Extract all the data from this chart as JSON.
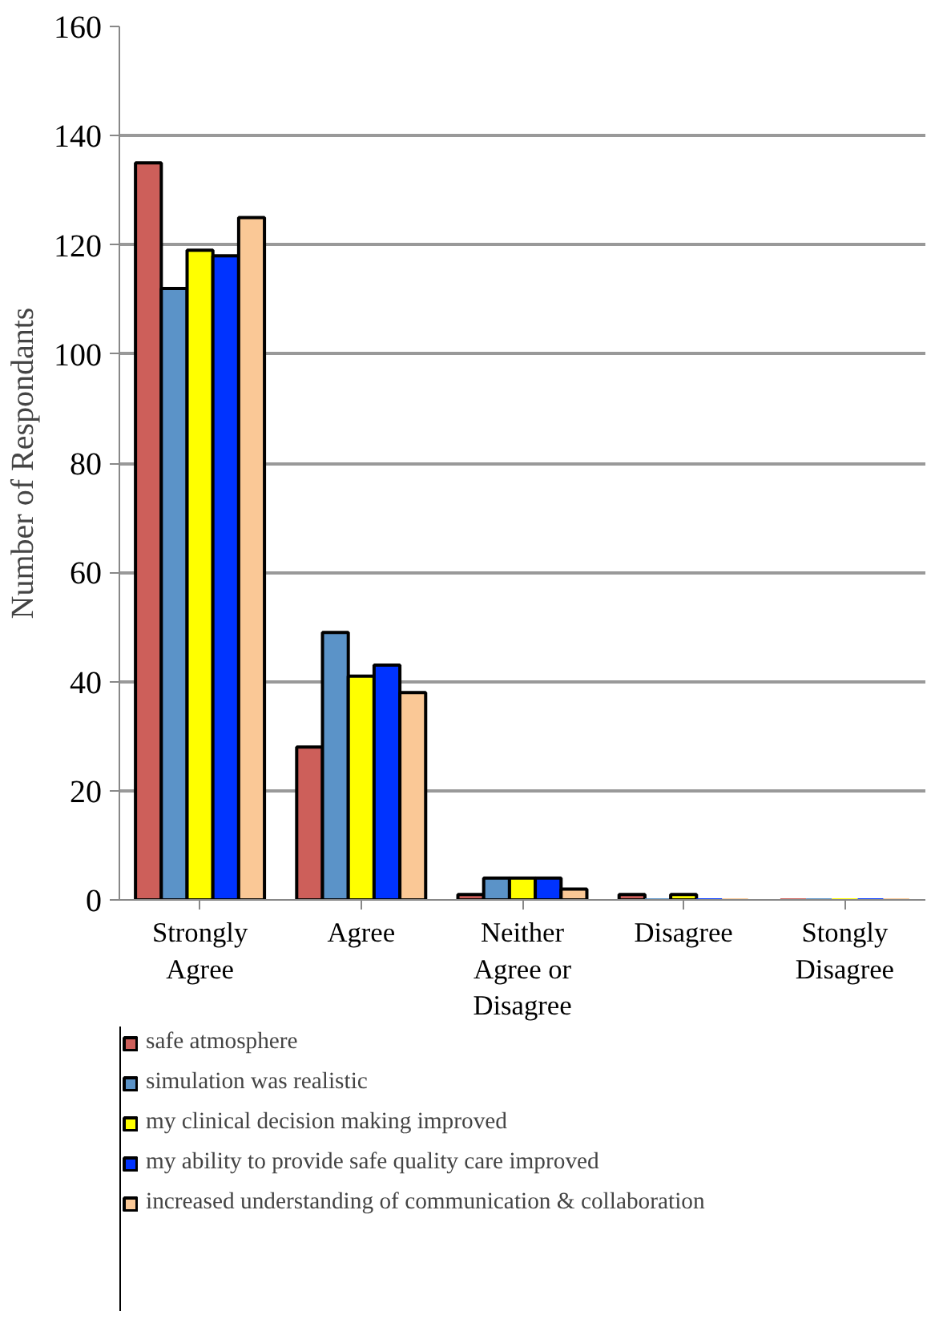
{
  "chart_data": {
    "type": "bar",
    "ylabel": "Number of Respondants",
    "categories": [
      "Strongly Agree",
      "Agree",
      "Neither Agree or Disagree",
      "Disagree",
      "Stongly Disagree"
    ],
    "series": [
      {
        "name": "safe atmosphere",
        "color": "#cd5f5a",
        "values": [
          135,
          28,
          1,
          1,
          0
        ]
      },
      {
        "name": "simulation was realistic",
        "color": "#5b93c8",
        "values": [
          112,
          49,
          4,
          0,
          0
        ]
      },
      {
        "name": "my clinical decision making improved",
        "color": "#ffff00",
        "values": [
          119,
          41,
          4,
          1,
          0
        ]
      },
      {
        "name": "my ability to provide safe quality care improved",
        "color": "#0033ff",
        "values": [
          118,
          43,
          4,
          0,
          0
        ]
      },
      {
        "name": "increased understanding of communication & collaboration",
        "color": "#fac896",
        "values": [
          125,
          38,
          2,
          0,
          0
        ]
      }
    ],
    "ylim": [
      0,
      160
    ],
    "yticks": [
      0,
      20,
      40,
      60,
      80,
      100,
      120,
      140,
      160
    ],
    "grid": "y",
    "legend": "bottom"
  }
}
